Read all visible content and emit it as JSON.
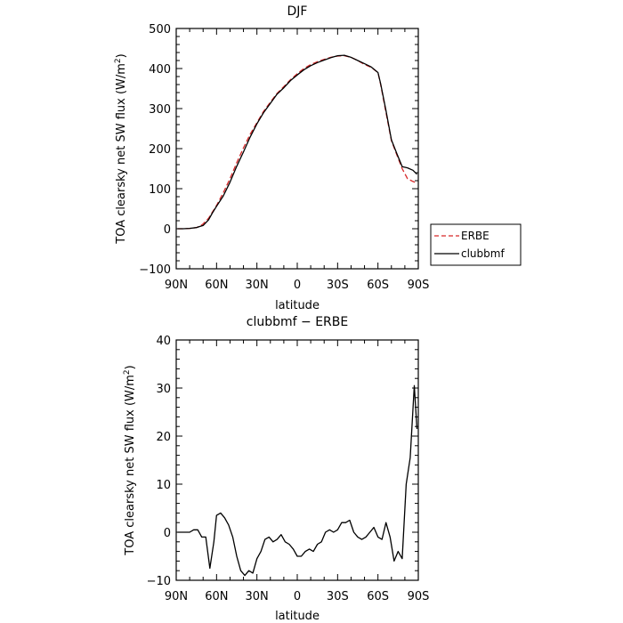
{
  "chart_data": [
    {
      "type": "line",
      "title": "DJF",
      "xlabel": "latitude",
      "ylabel": "TOA clearsky net SW flux (W/m",
      "ylabel_sup": "2",
      "ylabel_close": ")",
      "x_tick_labels": [
        "90N",
        "60N",
        "30N",
        "0",
        "30S",
        "60S",
        "90S"
      ],
      "y_ticks": [
        500,
        400,
        300,
        200,
        100,
        0,
        -100
      ],
      "y_tick_labels": [
        "500",
        "400",
        "300",
        "200",
        "100",
        "0",
        "−100"
      ],
      "xlim": [
        90,
        -90
      ],
      "ylim": [
        -100,
        500
      ],
      "legend_position": "right",
      "series": [
        {
          "name": "ERBE",
          "color": "#d62728",
          "dash": "dashed",
          "x": [
            89,
            85,
            80,
            75,
            72,
            70,
            66,
            63,
            60,
            55,
            50,
            45,
            40,
            35,
            30,
            25,
            20,
            15,
            10,
            5,
            0,
            -5,
            -10,
            -15,
            -20,
            -25,
            -30,
            -35,
            -40,
            -45,
            -50,
            -55,
            -60,
            -62,
            -66,
            -70,
            -74,
            -78,
            -82,
            -86,
            -89
          ],
          "y": [
            0,
            0,
            1,
            3,
            7,
            12,
            26,
            42,
            58,
            90,
            125,
            165,
            202,
            236,
            265,
            293,
            316,
            338,
            355,
            372,
            387,
            400,
            410,
            417,
            423,
            428,
            431,
            432,
            428,
            420,
            410,
            403,
            390,
            360,
            290,
            220,
            185,
            150,
            125,
            118,
            114
          ]
        },
        {
          "name": "clubbmf",
          "color": "#000000",
          "dash": "solid",
          "x": [
            89,
            85,
            80,
            75,
            72,
            70,
            66,
            63,
            60,
            55,
            50,
            45,
            40,
            35,
            30,
            25,
            20,
            15,
            10,
            5,
            0,
            -5,
            -10,
            -15,
            -20,
            -25,
            -30,
            -35,
            -40,
            -45,
            -50,
            -55,
            -60,
            -62,
            -66,
            -70,
            -74,
            -78,
            -82,
            -86,
            -89
          ],
          "y": [
            0,
            0,
            1,
            3,
            6,
            8,
            22,
            40,
            56,
            82,
            116,
            156,
            192,
            229,
            262,
            290,
            313,
            336,
            352,
            370,
            384,
            397,
            407,
            415,
            421,
            427,
            432,
            433,
            428,
            420,
            412,
            404,
            390,
            362,
            295,
            222,
            188,
            155,
            152,
            146,
            136
          ]
        }
      ]
    },
    {
      "type": "line",
      "title": "clubbmf − ERBE",
      "xlabel": "latitude",
      "ylabel": "TOA clearsky net SW flux (W/m",
      "ylabel_sup": "2",
      "ylabel_close": ")",
      "x_tick_labels": [
        "90N",
        "60N",
        "30N",
        "0",
        "30S",
        "60S",
        "90S"
      ],
      "y_ticks": [
        40,
        30,
        20,
        10,
        0,
        -10
      ],
      "y_tick_labels": [
        "40",
        "30",
        "20",
        "10",
        "0",
        "−10"
      ],
      "xlim": [
        90,
        -90
      ],
      "ylim": [
        -10,
        40
      ],
      "series": [
        {
          "color": "#000000",
          "x": [
            89,
            86,
            83,
            80,
            77,
            74,
            71,
            68,
            65,
            62,
            60,
            57,
            54,
            51,
            48,
            45,
            42,
            39,
            36,
            33,
            30,
            27,
            24,
            21,
            18,
            15,
            12,
            9,
            6,
            3,
            0,
            -3,
            -6,
            -9,
            -12,
            -15,
            -18,
            -21,
            -24,
            -27,
            -30,
            -33,
            -36,
            -39,
            -42,
            -45,
            -48,
            -51,
            -54,
            -57,
            -60,
            -63,
            -66,
            -69,
            -72,
            -75,
            -78,
            -81,
            -84,
            -87,
            -89
          ],
          "y": [
            0,
            0,
            0,
            0,
            0.5,
            0.5,
            -1,
            -1,
            -7.5,
            -2,
            3.5,
            4,
            3,
            1.5,
            -1,
            -5,
            -8,
            -9,
            -8,
            -8.5,
            -5.5,
            -4,
            -1.5,
            -1,
            -2,
            -1.5,
            -0.5,
            -2,
            -2.5,
            -3.5,
            -5,
            -5,
            -4,
            -3.5,
            -4,
            -2.5,
            -2,
            0,
            0.5,
            0,
            0.5,
            2,
            2,
            2.5,
            0,
            -1,
            -1.5,
            -1,
            0,
            1,
            -1,
            -1.5,
            2,
            -1,
            -6,
            -4,
            -5.5,
            10,
            15.5,
            30.5,
            21.5
          ]
        }
      ]
    }
  ]
}
